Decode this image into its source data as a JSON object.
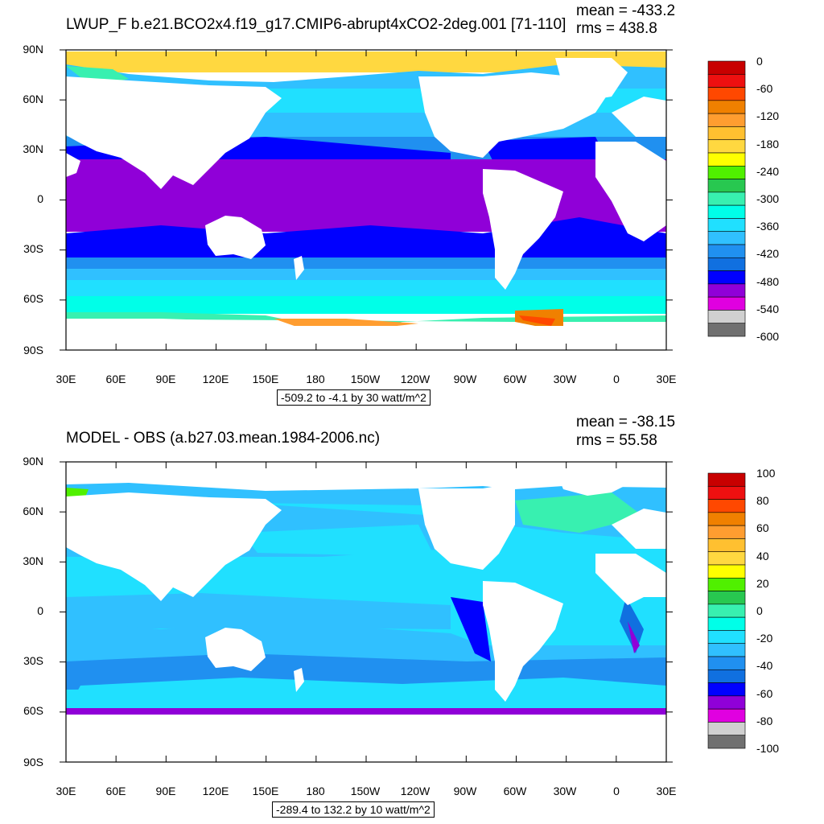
{
  "panels": [
    {
      "title": "LWUP_F b.e21.BCO2x4.f19_g17.CMIP6-abrupt4xCO2-2deg.001 [71-110]",
      "mean": "mean = -433.2",
      "rms": "rms = 438.8",
      "info": "-509.2 to -4.1 by 30 watt/m^2",
      "colorbar_labels": [
        "0",
        "-60",
        "-120",
        "-180",
        "-240",
        "-300",
        "-360",
        "-420",
        "-480",
        "-540",
        "-600"
      ],
      "colorbar_colors": [
        "#c80000",
        "#ee1010",
        "#ff4800",
        "#f08000",
        "#ff9d30",
        "#ffc030",
        "#ffd840",
        "#ffff00",
        "#50f000",
        "#28c850",
        "#38f0b0",
        "#00ffe8",
        "#20e0ff",
        "#30c0ff",
        "#2090f0",
        "#1070e0",
        "#0000ff",
        "#9000d8",
        "#e000e0",
        "#d0d0d0",
        "#707070"
      ]
    },
    {
      "title": "MODEL - OBS (a.b27.03.mean.1984-2006.nc)",
      "mean": "mean = -38.15",
      "rms": "rms = 55.58",
      "info": "-289.4 to 132.2 by 10 watt/m^2",
      "colorbar_labels": [
        "100",
        "80",
        "60",
        "40",
        "20",
        "0",
        "-20",
        "-40",
        "-60",
        "-80",
        "-100"
      ],
      "colorbar_colors": [
        "#c80000",
        "#ee1010",
        "#ff4800",
        "#f08000",
        "#ff9d30",
        "#ffc030",
        "#ffd840",
        "#ffff00",
        "#50f000",
        "#28c850",
        "#38f0b0",
        "#00ffe8",
        "#20e0ff",
        "#30c0ff",
        "#2090f0",
        "#1070e0",
        "#0000ff",
        "#9000d8",
        "#e000e0",
        "#d0d0d0",
        "#707070"
      ]
    }
  ],
  "lat_labels": [
    "90N",
    "60N",
    "30N",
    "0",
    "30S",
    "60S",
    "90S"
  ],
  "lon_labels": [
    "30E",
    "60E",
    "90E",
    "120E",
    "150E",
    "180",
    "150W",
    "120W",
    "90W",
    "60W",
    "30W",
    "0",
    "30E"
  ]
}
